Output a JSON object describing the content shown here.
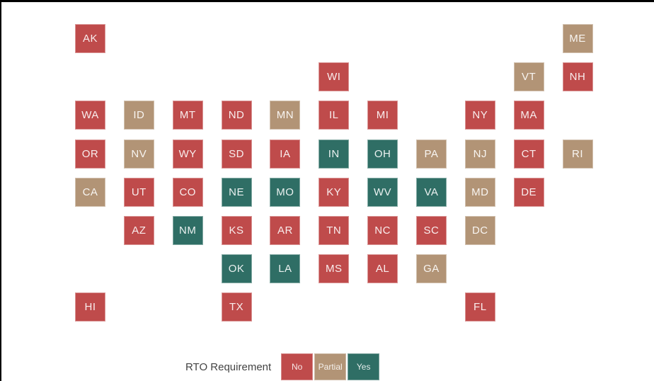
{
  "legend": {
    "title": "RTO Requirement",
    "items": [
      {
        "label": "No",
        "color": "#bf4b4b"
      },
      {
        "label": "Partial",
        "color": "#b29476"
      },
      {
        "label": "Yes",
        "color": "#2f6e65"
      }
    ]
  },
  "chart_data": {
    "type": "heatmap",
    "subtype": "us-state-tile-grid-map",
    "legend_title": "RTO Requirement",
    "categories": [
      "No",
      "Partial",
      "Yes"
    ],
    "category_colors": {
      "No": "#bf4b4b",
      "Partial": "#b29476",
      "Yes": "#2f6e65"
    },
    "tile_text_color": "#ffffff",
    "background": "#ffffff",
    "states": [
      {
        "abbr": "AK",
        "row": 1,
        "col": 1,
        "value": "No"
      },
      {
        "abbr": "ME",
        "row": 1,
        "col": 11,
        "value": "Partial"
      },
      {
        "abbr": "WI",
        "row": 2,
        "col": 6,
        "value": "No"
      },
      {
        "abbr": "VT",
        "row": 2,
        "col": 10,
        "value": "Partial"
      },
      {
        "abbr": "NH",
        "row": 2,
        "col": 11,
        "value": "No"
      },
      {
        "abbr": "WA",
        "row": 3,
        "col": 1,
        "value": "No"
      },
      {
        "abbr": "ID",
        "row": 3,
        "col": 2,
        "value": "Partial"
      },
      {
        "abbr": "MT",
        "row": 3,
        "col": 3,
        "value": "No"
      },
      {
        "abbr": "ND",
        "row": 3,
        "col": 4,
        "value": "No"
      },
      {
        "abbr": "MN",
        "row": 3,
        "col": 5,
        "value": "Partial"
      },
      {
        "abbr": "IL",
        "row": 3,
        "col": 6,
        "value": "No"
      },
      {
        "abbr": "MI",
        "row": 3,
        "col": 7,
        "value": "No"
      },
      {
        "abbr": "NY",
        "row": 3,
        "col": 9,
        "value": "No"
      },
      {
        "abbr": "MA",
        "row": 3,
        "col": 10,
        "value": "No"
      },
      {
        "abbr": "OR",
        "row": 4,
        "col": 1,
        "value": "No"
      },
      {
        "abbr": "NV",
        "row": 4,
        "col": 2,
        "value": "Partial"
      },
      {
        "abbr": "WY",
        "row": 4,
        "col": 3,
        "value": "No"
      },
      {
        "abbr": "SD",
        "row": 4,
        "col": 4,
        "value": "No"
      },
      {
        "abbr": "IA",
        "row": 4,
        "col": 5,
        "value": "No"
      },
      {
        "abbr": "IN",
        "row": 4,
        "col": 6,
        "value": "Yes"
      },
      {
        "abbr": "OH",
        "row": 4,
        "col": 7,
        "value": "Yes"
      },
      {
        "abbr": "PA",
        "row": 4,
        "col": 8,
        "value": "Partial"
      },
      {
        "abbr": "NJ",
        "row": 4,
        "col": 9,
        "value": "Partial"
      },
      {
        "abbr": "CT",
        "row": 4,
        "col": 10,
        "value": "No"
      },
      {
        "abbr": "RI",
        "row": 4,
        "col": 11,
        "value": "Partial"
      },
      {
        "abbr": "CA",
        "row": 5,
        "col": 1,
        "value": "Partial"
      },
      {
        "abbr": "UT",
        "row": 5,
        "col": 2,
        "value": "No"
      },
      {
        "abbr": "CO",
        "row": 5,
        "col": 3,
        "value": "No"
      },
      {
        "abbr": "NE",
        "row": 5,
        "col": 4,
        "value": "Yes"
      },
      {
        "abbr": "MO",
        "row": 5,
        "col": 5,
        "value": "Yes"
      },
      {
        "abbr": "KY",
        "row": 5,
        "col": 6,
        "value": "No"
      },
      {
        "abbr": "WV",
        "row": 5,
        "col": 7,
        "value": "Yes"
      },
      {
        "abbr": "VA",
        "row": 5,
        "col": 8,
        "value": "Yes"
      },
      {
        "abbr": "MD",
        "row": 5,
        "col": 9,
        "value": "Partial"
      },
      {
        "abbr": "DE",
        "row": 5,
        "col": 10,
        "value": "No"
      },
      {
        "abbr": "AZ",
        "row": 6,
        "col": 2,
        "value": "No"
      },
      {
        "abbr": "NM",
        "row": 6,
        "col": 3,
        "value": "Yes"
      },
      {
        "abbr": "KS",
        "row": 6,
        "col": 4,
        "value": "No"
      },
      {
        "abbr": "AR",
        "row": 6,
        "col": 5,
        "value": "No"
      },
      {
        "abbr": "TN",
        "row": 6,
        "col": 6,
        "value": "No"
      },
      {
        "abbr": "NC",
        "row": 6,
        "col": 7,
        "value": "No"
      },
      {
        "abbr": "SC",
        "row": 6,
        "col": 8,
        "value": "No"
      },
      {
        "abbr": "DC",
        "row": 6,
        "col": 9,
        "value": "Partial"
      },
      {
        "abbr": "OK",
        "row": 7,
        "col": 4,
        "value": "Yes"
      },
      {
        "abbr": "LA",
        "row": 7,
        "col": 5,
        "value": "Yes"
      },
      {
        "abbr": "MS",
        "row": 7,
        "col": 6,
        "value": "No"
      },
      {
        "abbr": "AL",
        "row": 7,
        "col": 7,
        "value": "No"
      },
      {
        "abbr": "GA",
        "row": 7,
        "col": 8,
        "value": "Partial"
      },
      {
        "abbr": "HI",
        "row": 8,
        "col": 1,
        "value": "No"
      },
      {
        "abbr": "TX",
        "row": 8,
        "col": 4,
        "value": "No"
      },
      {
        "abbr": "FL",
        "row": 8,
        "col": 9,
        "value": "No"
      }
    ]
  }
}
